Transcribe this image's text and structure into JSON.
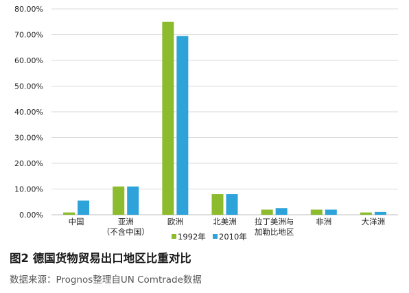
{
  "figure": {
    "title": "图2  德国货物贸易出口地区比重对比",
    "source": "数据来源：Prognos整理自UN Comtrade数据"
  },
  "chart_data": {
    "type": "bar",
    "categories": [
      [
        "中国"
      ],
      [
        "亚洲",
        "（不含中国）"
      ],
      [
        "欧洲"
      ],
      [
        "北美洲"
      ],
      [
        "拉丁美洲与",
        "加勒比地区"
      ],
      [
        "非洲"
      ],
      [
        "大洋洲"
      ]
    ],
    "series": [
      {
        "name": "1992年",
        "color": "#8cbb2d",
        "values": [
          0.9,
          11.0,
          75.0,
          8.0,
          2.0,
          2.0,
          0.9
        ]
      },
      {
        "name": "2010年",
        "color": "#2ea3da",
        "values": [
          5.5,
          11.0,
          69.5,
          8.0,
          2.6,
          2.0,
          1.1
        ]
      }
    ],
    "yticks": [
      "0.00%",
      "10.00%",
      "20.00%",
      "30.00%",
      "40.00%",
      "50.00%",
      "60.00%",
      "70.00%",
      "80.00%"
    ],
    "ylim": [
      0,
      80
    ],
    "grid": true,
    "legend_position": "bottom"
  }
}
